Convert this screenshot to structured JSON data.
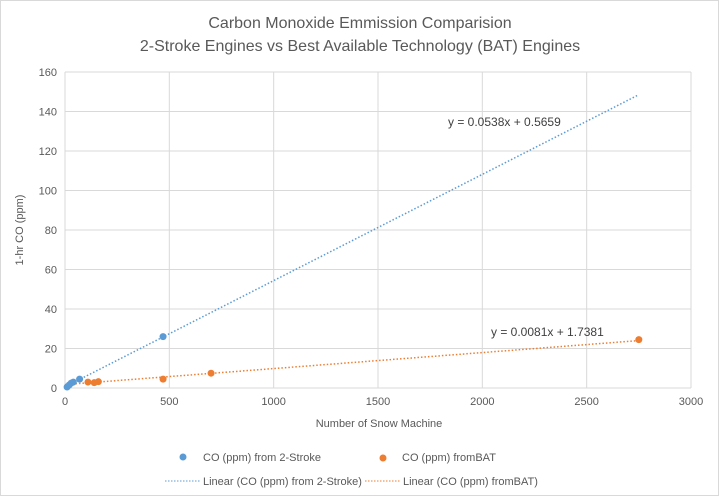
{
  "chart_data": {
    "type": "scatter",
    "title": "Carbon Monoxide Emmission Comparision",
    "subtitle": "2-Stroke Engines vs Best Available Technology (BAT) Engines",
    "xlabel": "Number of Snow Machine",
    "ylabel": "1-hr CO (ppm)",
    "xlim": [
      0,
      3000
    ],
    "ylim": [
      0,
      160
    ],
    "xticks": [
      0,
      500,
      1000,
      1500,
      2000,
      2500,
      3000
    ],
    "yticks": [
      0,
      20,
      40,
      60,
      80,
      100,
      120,
      140,
      160
    ],
    "grid": true,
    "legend": "bottom",
    "series": [
      {
        "name": "CO (ppm) from 2-Stroke",
        "color": "#5b9bd5",
        "x": [
          10,
          20,
          30,
          40,
          70,
          470
        ],
        "y": [
          0.5,
          1.5,
          2.5,
          3,
          4.5,
          26
        ],
        "trendline": {
          "name": "Linear (CO (ppm) from 2-Stroke)",
          "slope": 0.0538,
          "intercept": 0.5659,
          "x_range": [
            0,
            2750
          ],
          "equation": "y = 0.0538x + 0.5659"
        }
      },
      {
        "name": "CO (ppm) fromBAT",
        "color": "#ed7d31",
        "x": [
          110,
          140,
          160,
          470,
          700,
          2750
        ],
        "y": [
          3,
          2.7,
          3.2,
          4.5,
          7.5,
          24.5
        ],
        "trendline": {
          "name": "Linear (CO (ppm) fromBAT)",
          "slope": 0.0081,
          "intercept": 1.7381,
          "x_range": [
            0,
            2750
          ],
          "equation": "y = 0.0081x + 1.7381"
        }
      }
    ]
  }
}
